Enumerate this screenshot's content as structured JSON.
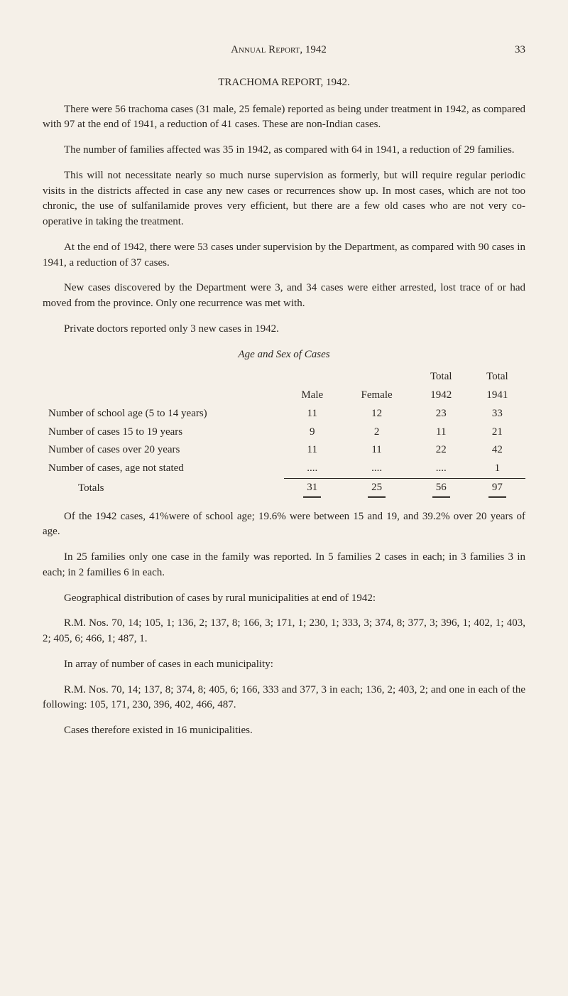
{
  "header": {
    "title": "Annual Report, 1942",
    "pageNumber": "33"
  },
  "sectionTitle": "TRACHOMA REPORT, 1942.",
  "paragraphs": {
    "p1": "There were 56 trachoma cases (31 male, 25 female) reported as being under treatment in 1942, as compared with 97 at the end of 1941, a reduction of 41 cases. These are non-Indian cases.",
    "p2": "The number of families affected was 35 in 1942, as compared with 64 in 1941, a reduction of 29 families.",
    "p3": "This will not necessitate nearly so much nurse supervision as formerly, but will require regular periodic visits in the districts affected in case any new cases or recurrences show up. In most cases, which are not too chronic, the use of sulfanilamide proves very efficient, but there are a few old cases who are not very co-operative in taking the treatment.",
    "p4": "At the end of 1942, there were 53 cases under supervision by the Department, as compared with 90 cases in 1941, a reduction of 37 cases.",
    "p5": "New cases discovered by the Department were 3, and 34 cases were either arrested, lost trace of or had moved from the province. Only one recurrence was met with.",
    "p6": "Private doctors reported only 3 new cases in 1942."
  },
  "table": {
    "title": "Age and Sex of Cases",
    "headers": {
      "blank": "",
      "male": "Male",
      "female": "Female",
      "total1942_top": "Total",
      "total1942_bottom": "1942",
      "total1941_top": "Total",
      "total1941_bottom": "1941"
    },
    "rows": {
      "r1": {
        "label": "Number of school age (5 to 14 years)",
        "male": "11",
        "female": "12",
        "t1942": "23",
        "t1941": "33"
      },
      "r2": {
        "label": "Number of cases 15 to 19 years",
        "male": "9",
        "female": "2",
        "t1942": "11",
        "t1941": "21"
      },
      "r3": {
        "label": "Number of cases over 20 years",
        "male": "11",
        "female": "11",
        "t1942": "22",
        "t1941": "42"
      },
      "r4": {
        "label": "Number of cases, age not stated",
        "male": "....",
        "female": "....",
        "t1942": "....",
        "t1941": "1"
      },
      "totals": {
        "label": "Totals",
        "male": "31",
        "female": "25",
        "t1942": "56",
        "t1941": "97"
      }
    }
  },
  "afterTable": {
    "p7": "Of the 1942 cases, 41%were of school age; 19.6% were between 15 and 19, and 39.2% over 20 years of age.",
    "p8": "In 25 families only one case in the family was reported. In 5 families 2 cases in each; in 3 families 3 in each; in 2 families 6 in each.",
    "p9": "Geographical distribution of cases by rural municipalities at end of 1942:",
    "p10": "R.M. Nos. 70, 14; 105, 1; 136, 2; 137, 8; 166, 3; 171, 1; 230, 1; 333, 3; 374, 8; 377, 3; 396, 1; 402, 1; 403, 2; 405, 6; 466, 1; 487, 1.",
    "p11": "In array of number of cases in each municipality:",
    "p12": "R.M. Nos. 70, 14; 137, 8; 374, 8; 405, 6; 166, 333 and 377, 3 in each; 136, 2; 403, 2; and one in each of the following: 105, 171, 230, 396, 402, 466, 487.",
    "p13": "Cases therefore existed in 16 municipalities."
  }
}
